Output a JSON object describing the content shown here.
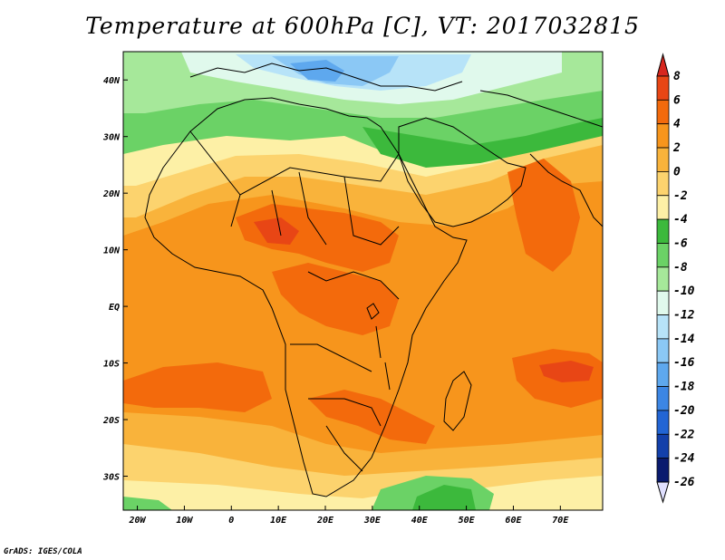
{
  "title": "Temperature at 600hPa [C], VT: 2017032815",
  "credit": "GrADS: IGES/COLA",
  "map": {
    "variable": "Temperature at 600hPa",
    "units": "C",
    "valid_time": "2017032815",
    "lon_range": [
      -23,
      79
    ],
    "lat_range": [
      -36,
      45
    ],
    "x_ticks": [
      {
        "value": -20,
        "label": "20W"
      },
      {
        "value": -10,
        "label": "10W"
      },
      {
        "value": 0,
        "label": "0"
      },
      {
        "value": 10,
        "label": "10E"
      },
      {
        "value": 20,
        "label": "20E"
      },
      {
        "value": 30,
        "label": "30E"
      },
      {
        "value": 40,
        "label": "40E"
      },
      {
        "value": 50,
        "label": "50E"
      },
      {
        "value": 60,
        "label": "60E"
      },
      {
        "value": 70,
        "label": "70E"
      }
    ],
    "y_ticks": [
      {
        "value": 40,
        "label": "40N"
      },
      {
        "value": 30,
        "label": "30N"
      },
      {
        "value": 20,
        "label": "20N"
      },
      {
        "value": 10,
        "label": "10N"
      },
      {
        "value": 0,
        "label": "EQ"
      },
      {
        "value": -10,
        "label": "10S"
      },
      {
        "value": -20,
        "label": "20S"
      },
      {
        "value": -30,
        "label": "30S"
      }
    ]
  },
  "colorbar": {
    "labels": [
      "8",
      "6",
      "4",
      "2",
      "0",
      "-2",
      "-4",
      "-6",
      "-8",
      "-10",
      "-12",
      "-14",
      "-16",
      "-18",
      "-20",
      "-22",
      "-24",
      "-26"
    ],
    "colors": [
      "#d7261e",
      "#e84615",
      "#f36a0c",
      "#f7951c",
      "#f9b33b",
      "#fcd36e",
      "#fdf0a6",
      "#3cb93c",
      "#6bd266",
      "#a6e89a",
      "#e0f9ec",
      "#b7e3f8",
      "#8bc8f5",
      "#5ea8ee",
      "#3c86e4",
      "#2265d4",
      "#1340aa",
      "#0a1a6e"
    ]
  }
}
